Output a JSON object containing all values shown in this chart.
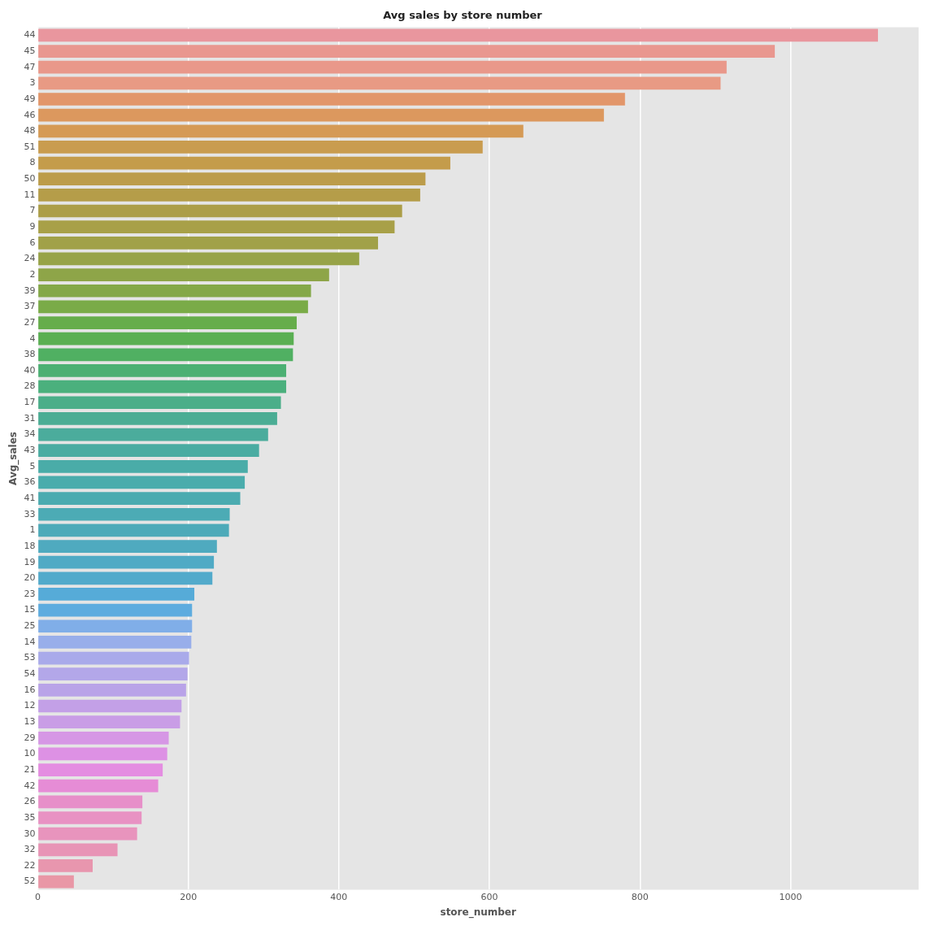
{
  "chart_data": {
    "type": "bar",
    "orientation": "horizontal",
    "title": "Avg sales by store number",
    "xlabel": "store_number",
    "ylabel": "Avg_sales",
    "categories": [
      "44",
      "45",
      "47",
      "3",
      "49",
      "46",
      "48",
      "51",
      "8",
      "50",
      "11",
      "7",
      "9",
      "6",
      "24",
      "2",
      "39",
      "37",
      "27",
      "4",
      "38",
      "40",
      "28",
      "17",
      "31",
      "34",
      "43",
      "5",
      "36",
      "41",
      "33",
      "1",
      "18",
      "19",
      "20",
      "23",
      "15",
      "25",
      "14",
      "53",
      "54",
      "16",
      "12",
      "13",
      "29",
      "10",
      "21",
      "42",
      "26",
      "35",
      "30",
      "32",
      "22",
      "52"
    ],
    "values": [
      1116,
      979,
      915,
      907,
      780,
      752,
      645,
      591,
      548,
      515,
      508,
      484,
      474,
      452,
      427,
      387,
      363,
      359,
      344,
      340,
      339,
      330,
      330,
      323,
      318,
      306,
      294,
      279,
      275,
      269,
      255,
      254,
      238,
      234,
      232,
      208,
      205,
      205,
      204,
      201,
      199,
      197,
      191,
      189,
      174,
      172,
      166,
      160,
      139,
      138,
      132,
      106,
      73,
      48
    ],
    "colors": [
      "#e9969e",
      "#e9978f",
      "#e9988a",
      "#e89a84",
      "#e2966a",
      "#dc985e",
      "#d59a55",
      "#c99c4f",
      "#c49c4b",
      "#bc9c4a",
      "#b59d49",
      "#ac9e48",
      "#a8a048",
      "#a1a148",
      "#97a348",
      "#8ea548",
      "#84a848",
      "#7aab48",
      "#66ad4b",
      "#5aaf52",
      "#50b062",
      "#4cb073",
      "#4bb07d",
      "#4bae89",
      "#4bad94",
      "#4bac9c",
      "#4aaca2",
      "#4aaca8",
      "#4aacac",
      "#4babb0",
      "#4cabb5",
      "#4daab9",
      "#4faabf",
      "#50aac5",
      "#52aacb",
      "#56abd8",
      "#5eacdf",
      "#80aee8",
      "#98aeea",
      "#a9aaea",
      "#b3a7e9",
      "#b9a3e8",
      "#c3a0e7",
      "#c99de6",
      "#d697e5",
      "#dd91e4",
      "#e48de1",
      "#e68cd6",
      "#e78fc9",
      "#e892c3",
      "#e894bd",
      "#e894b6",
      "#e896ae",
      "#e997a6"
    ],
    "xlim": [
      0,
      1170
    ],
    "xticks": [
      0,
      200,
      400,
      600,
      800,
      1000
    ],
    "grid": "x"
  }
}
